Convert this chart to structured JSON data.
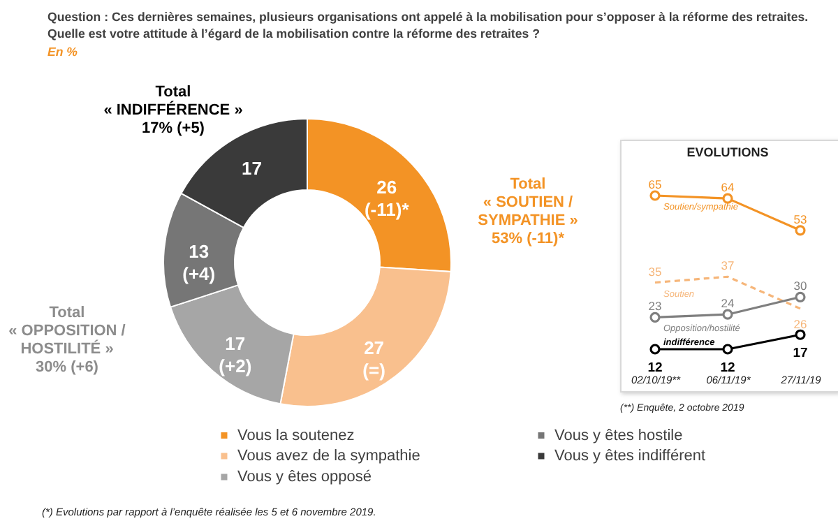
{
  "chart_data": [
    {
      "type": "donut",
      "title": "Question : Ces dernières semaines, plusieurs organisations ont appelé à la mobilisation pour s’opposer à la réforme des retraites.\nQuelle est votre attitude à l’égard de la mobilisation contre la réforme des retraites ?",
      "subtitle": "En %",
      "categories": [
        "Vous la soutenez",
        "Vous avez de la sympathie",
        "Vous y êtes opposé",
        "Vous y êtes hostile",
        "Vous y êtes indifférent"
      ],
      "values": [
        26,
        27,
        17,
        13,
        17
      ],
      "colors": [
        "#f39325",
        "#f9c08e",
        "#a6a6a6",
        "#767676",
        "#3a3a3a"
      ],
      "value_labels": [
        "26\n(-11)*",
        "27\n(=)",
        "17\n(+2)",
        "13\n(+4)",
        "17"
      ],
      "legend": "bottom",
      "annotations": [
        "Total\n« SOUTIEN /\nSYMPATHIE »\n53% (-11)*",
        "Total\n« OPPOSITION /\nHOSTILITÉ »\n30% (+6)",
        "Total\n« INDIFFÉRENCE »\n17% (+5)",
        "(*) Evolutions par rapport à l’enquête réalisée les 5 et 6 novembre 2019."
      ]
    },
    {
      "type": "line",
      "title": "EVOLUTIONS",
      "categories": [
        "02/10/19**",
        "06/11/19*",
        "27/11/19"
      ],
      "series": [
        {
          "name": "Soutien/sympathie",
          "color": "#f39325",
          "values": [
            65,
            64,
            53
          ]
        },
        {
          "name": "Soutien",
          "color": "#f6b67a",
          "values": [
            35,
            37,
            26
          ],
          "line_style": "dashed",
          "marker": "none"
        },
        {
          "name": "Opposition/hostilité",
          "color": "#7f7f7f",
          "values": [
            23,
            24,
            30
          ]
        },
        {
          "name": "indifférence",
          "color": "#000000",
          "values": [
            12,
            12,
            17
          ]
        }
      ],
      "marker": "circle",
      "line_style": "solid",
      "data_labels": true,
      "legend": false,
      "tick_labels": "x",
      "annotations": [
        "(**) Enquête, 2 octobre 2019"
      ]
    }
  ]
}
